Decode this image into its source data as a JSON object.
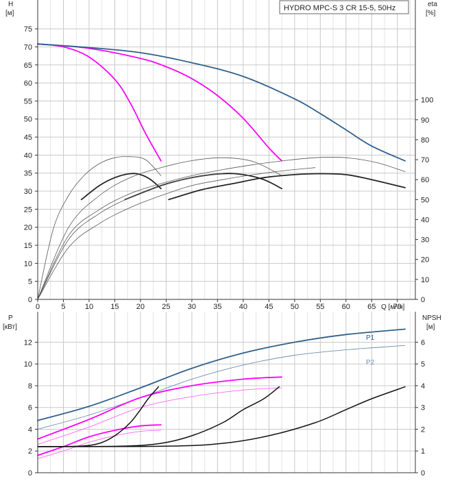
{
  "chart_data": [
    {
      "type": "line",
      "title": "HYDRO MPC-S 3 CR 15-5, 50Hz",
      "left_axis_label": "H",
      "left_axis_unit": "[м]",
      "right_axis_label": "eta",
      "right_axis_unit": "[%]",
      "xlabel": "Q [м³/ч]",
      "xlim": [
        0,
        73.5
      ],
      "ylim": [
        0,
        83
      ],
      "ylim_right": [
        0,
        150
      ],
      "x_ticks": [
        "0",
        "5",
        "10",
        "15",
        "20",
        "25",
        "30",
        "35",
        "40",
        "45",
        "50",
        "55",
        "60",
        "65",
        "70"
      ],
      "y_ticks": [
        "0",
        "5",
        "10",
        "15",
        "20",
        "25",
        "30",
        "35",
        "40",
        "45",
        "50",
        "55",
        "60",
        "65",
        "70",
        "75"
      ],
      "y_right_ticks": [
        "0",
        "10",
        "20",
        "30",
        "40",
        "50",
        "60",
        "70",
        "80",
        "90",
        "100"
      ],
      "grid": true,
      "colors": {
        "head_max": "#2e5f8a",
        "head_partial": "#ff00ff",
        "efficiency": "#555555",
        "efficiency_bold": "#222222",
        "grid": "#cfcfcf"
      },
      "series": [
        {
          "axis": "left",
          "color": "#ff00ff",
          "width": 1.8,
          "x": [
            0,
            5,
            10,
            15,
            18,
            21,
            24
          ],
          "y": [
            70.8,
            70.0,
            67.2,
            61.0,
            54.5,
            46.0,
            38.4
          ]
        },
        {
          "axis": "left",
          "color": "#ff00ff",
          "width": 1.8,
          "x": [
            0,
            10,
            20,
            25,
            30,
            35,
            40,
            45,
            47.5
          ],
          "y": [
            70.8,
            69.6,
            66.8,
            64.5,
            61.2,
            56.5,
            50.2,
            42.0,
            38.4
          ]
        },
        {
          "axis": "left",
          "color": "#2e5f8a",
          "width": 1.8,
          "x": [
            0,
            10,
            20,
            30,
            40,
            50,
            55,
            60,
            65,
            71.5
          ],
          "y": [
            70.8,
            69.8,
            68.4,
            65.6,
            61.8,
            55.6,
            51.5,
            47.0,
            42.5,
            38.4
          ]
        },
        {
          "axis": "right",
          "color": "#555555",
          "width": 0.8,
          "x": [
            0,
            3,
            6,
            9,
            12,
            15,
            18,
            21,
            24
          ],
          "y": [
            0,
            35,
            52,
            62,
            68,
            71,
            71.5,
            70,
            62
          ]
        },
        {
          "axis": "right",
          "color": "#222222",
          "width": 1.8,
          "x": [
            8.5,
            12,
            15,
            18,
            20,
            22,
            24
          ],
          "y": [
            50,
            57,
            61,
            63,
            62.5,
            60,
            55.5
          ]
        },
        {
          "axis": "right",
          "color": "#555555",
          "width": 0.8,
          "x": [
            0,
            6,
            12,
            18,
            24,
            30,
            36,
            42,
            47.5
          ],
          "y": [
            0,
            36,
            52,
            61,
            66,
            69.5,
            71,
            69,
            62
          ]
        },
        {
          "axis": "right",
          "color": "#222222",
          "width": 1.8,
          "x": [
            17,
            24,
            30,
            36,
            40,
            44,
            47.5
          ],
          "y": [
            50,
            57,
            61,
            63,
            62.5,
            60,
            55.5
          ]
        },
        {
          "axis": "right",
          "color": "#555555",
          "width": 0.8,
          "x": [
            0,
            6,
            12,
            18,
            24,
            30,
            36,
            42,
            48,
            54,
            60,
            66,
            71.5
          ],
          "y": [
            0,
            32,
            45,
            53,
            58,
            62,
            65,
            67.5,
            69.5,
            71,
            71,
            68.5,
            64
          ]
        },
        {
          "axis": "right",
          "color": "#222222",
          "width": 1.8,
          "x": [
            25.5,
            32,
            38,
            44,
            50,
            55,
            60,
            65,
            71.5
          ],
          "y": [
            50,
            55,
            58,
            61,
            62.5,
            63,
            62.5,
            60,
            56
          ]
        },
        {
          "axis": "right",
          "color": "#555555",
          "width": 0.8,
          "x": [
            0,
            6,
            12,
            18,
            24,
            30,
            36
          ],
          "y": [
            0,
            30,
            43,
            51,
            57,
            61,
            63
          ]
        },
        {
          "axis": "right",
          "color": "#555555",
          "width": 0.8,
          "x": [
            0,
            6,
            12,
            18,
            24,
            30,
            36,
            42,
            48,
            54
          ],
          "y": [
            0,
            26,
            38,
            46,
            52,
            57,
            60,
            62.5,
            64.5,
            66
          ]
        }
      ]
    },
    {
      "type": "line",
      "left_axis_label": "P",
      "left_axis_unit": "[кВт]",
      "right_axis_label": "NPSH",
      "right_axis_unit": "[м]",
      "xlim": [
        0,
        73.5
      ],
      "ylim": [
        0,
        14.8
      ],
      "ylim_right": [
        0,
        7.4
      ],
      "y_ticks": [
        "0",
        "2",
        "4",
        "6",
        "8",
        "10",
        "12"
      ],
      "y_right_ticks": [
        "0",
        "1",
        "2",
        "3",
        "4",
        "5",
        "6"
      ],
      "grid": true,
      "series_labels": [
        "P1",
        "P2"
      ],
      "colors": {
        "p1": "#2e5f8a",
        "p2": "#6f8fae",
        "partial_p1": "#ff00ff",
        "partial_p2": "#ff66ff",
        "npsh": "#111111"
      },
      "series": [
        {
          "name": "P1",
          "axis": "left",
          "color": "#2e5f8a",
          "width": 1.8,
          "x": [
            0,
            10,
            20,
            30,
            40,
            50,
            60,
            71.5
          ],
          "y": [
            4.8,
            6.1,
            7.8,
            9.6,
            11.0,
            12.0,
            12.7,
            13.2
          ]
        },
        {
          "name": "P2",
          "axis": "left",
          "color": "#6f8fae",
          "width": 0.9,
          "x": [
            0,
            10,
            20,
            30,
            40,
            50,
            60,
            71.5
          ],
          "y": [
            4.0,
            5.3,
            6.9,
            8.6,
            9.9,
            10.8,
            11.3,
            11.7
          ]
        },
        {
          "axis": "left",
          "color": "#ff00ff",
          "width": 1.8,
          "x": [
            0,
            10,
            20,
            30,
            40,
            47.5
          ],
          "y": [
            3.1,
            4.9,
            6.9,
            8.0,
            8.6,
            8.8
          ]
        },
        {
          "axis": "left",
          "color": "#ff66ff",
          "width": 0.9,
          "x": [
            0,
            10,
            20,
            30,
            40,
            47.5
          ],
          "y": [
            2.6,
            4.2,
            6.0,
            7.0,
            7.6,
            7.8
          ]
        },
        {
          "axis": "left",
          "color": "#ff00ff",
          "width": 1.8,
          "x": [
            0,
            5,
            10,
            15,
            20,
            24
          ],
          "y": [
            1.6,
            2.4,
            3.3,
            3.9,
            4.3,
            4.4
          ]
        },
        {
          "axis": "left",
          "color": "#ff66ff",
          "width": 0.9,
          "x": [
            0,
            5,
            10,
            15,
            20,
            24
          ],
          "y": [
            1.3,
            2.0,
            2.8,
            3.4,
            3.8,
            3.9
          ]
        },
        {
          "axis": "right",
          "color": "#111111",
          "width": 1.5,
          "x": [
            0,
            8,
            12,
            15,
            18,
            20,
            21.5,
            23.5
          ],
          "y": [
            1.2,
            1.22,
            1.35,
            1.7,
            2.3,
            2.9,
            3.4,
            3.95
          ]
        },
        {
          "axis": "right",
          "color": "#111111",
          "width": 1.5,
          "x": [
            0,
            16,
            24,
            30,
            36,
            40,
            44,
            47
          ],
          "y": [
            1.2,
            1.22,
            1.35,
            1.7,
            2.3,
            2.9,
            3.4,
            3.95
          ]
        },
        {
          "axis": "right",
          "color": "#111111",
          "width": 1.5,
          "x": [
            0,
            25,
            36,
            45,
            54,
            60,
            65,
            71.5
          ],
          "y": [
            1.2,
            1.22,
            1.35,
            1.7,
            2.3,
            2.9,
            3.4,
            3.95
          ]
        }
      ]
    }
  ]
}
